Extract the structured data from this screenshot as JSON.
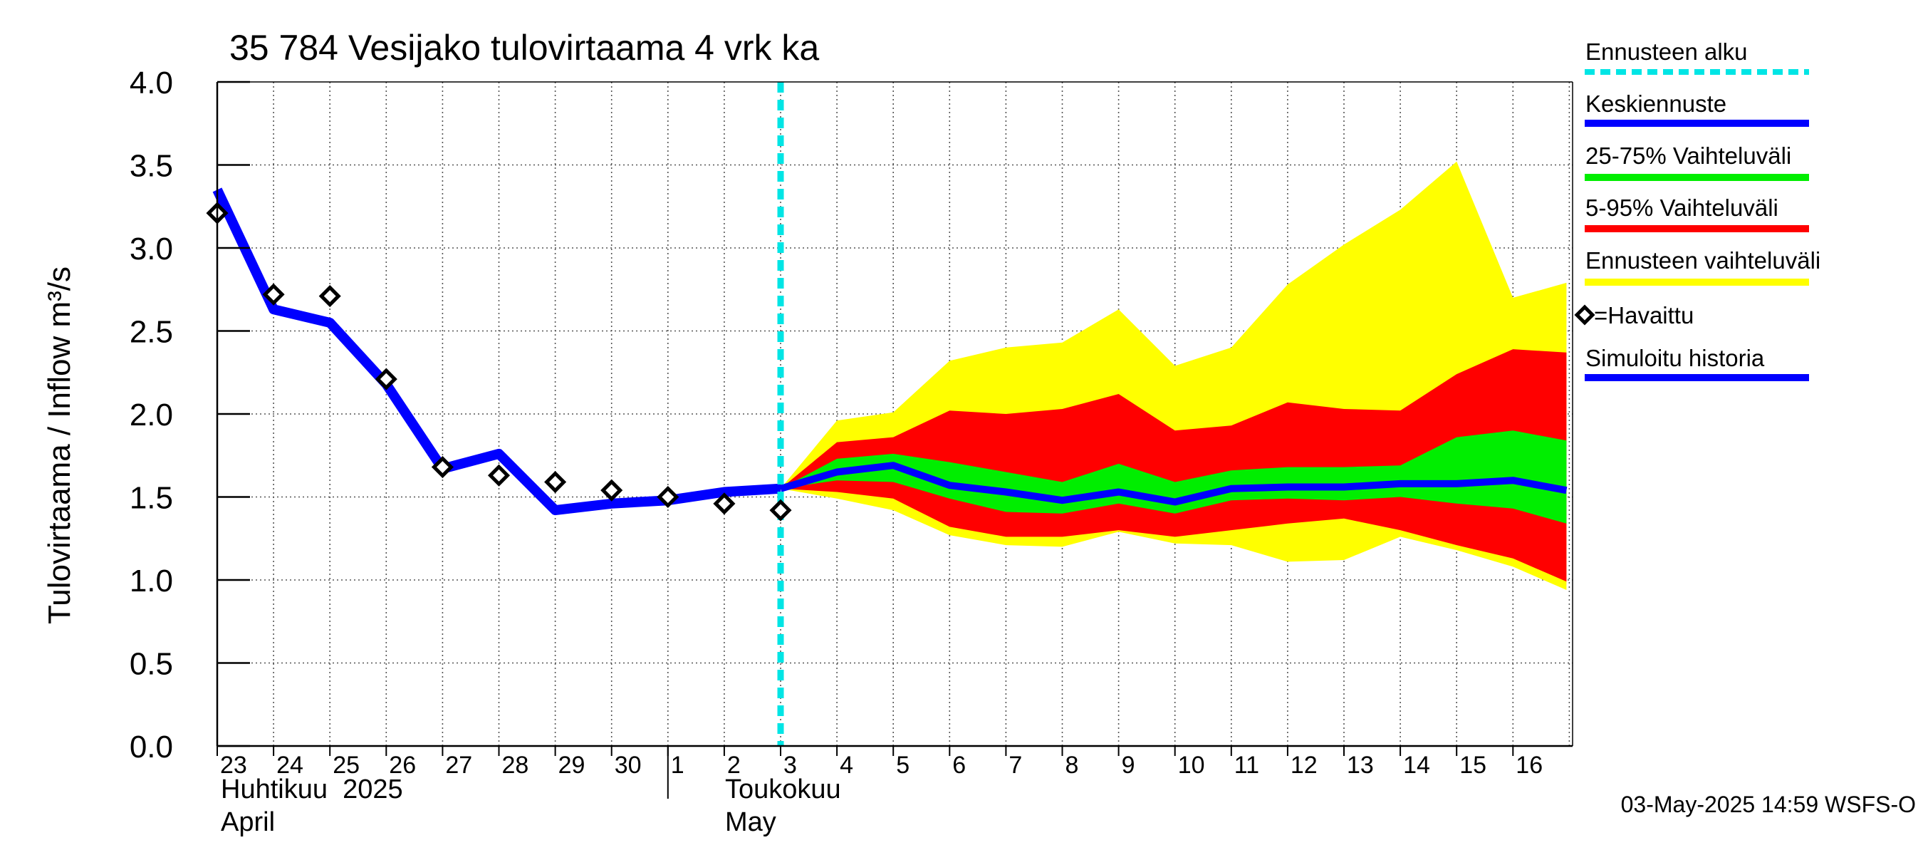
{
  "chart_data": {
    "type": "area",
    "title": "35 784 Vesijako tulovirtaama 4 vrk ka",
    "ylabel": "Tulovirtaama / Inflow    m³/s",
    "ylim": [
      0.0,
      4.0
    ],
    "yticks": [
      "0.0",
      "0.5",
      "1.0",
      "1.5",
      "2.0",
      "2.5",
      "3.0",
      "3.5",
      "4.0"
    ],
    "x_days": [
      "23",
      "24",
      "25",
      "26",
      "27",
      "28",
      "29",
      "30",
      "1",
      "2",
      "3",
      "4",
      "5",
      "6",
      "7",
      "8",
      "9",
      "10",
      "11",
      "12",
      "13",
      "14",
      "15",
      "16"
    ],
    "month_labels": [
      {
        "line1": "Huhtikuu  2025",
        "line2": "April"
      },
      {
        "line1": "Toukokuu",
        "line2": "May"
      }
    ],
    "forecast_start_index": 10,
    "forecast_index": [
      10,
      11,
      12,
      13,
      14,
      15,
      16,
      17,
      18,
      19,
      20,
      21,
      22,
      23,
      23.95
    ],
    "ennusteen_vaihteluvali": {
      "upper": [
        1.55,
        1.96,
        2.01,
        2.32,
        2.4,
        2.43,
        2.63,
        2.29,
        2.4,
        2.78,
        3.02,
        3.23,
        3.52,
        2.7,
        2.79
      ],
      "lower": [
        1.55,
        1.49,
        1.42,
        1.27,
        1.21,
        1.2,
        1.29,
        1.22,
        1.21,
        1.11,
        1.12,
        1.26,
        1.18,
        1.08,
        0.94
      ]
    },
    "vaihteluvali_5_95": {
      "upper": [
        1.55,
        1.83,
        1.86,
        2.02,
        2.0,
        2.03,
        2.12,
        1.9,
        1.93,
        2.07,
        2.03,
        2.02,
        2.24,
        2.39,
        2.37
      ],
      "lower": [
        1.55,
        1.53,
        1.49,
        1.32,
        1.26,
        1.26,
        1.3,
        1.26,
        1.3,
        1.34,
        1.37,
        1.3,
        1.21,
        1.13,
        0.99
      ]
    },
    "vaihteluvali_25_75": {
      "upper": [
        1.55,
        1.73,
        1.76,
        1.71,
        1.65,
        1.59,
        1.7,
        1.59,
        1.66,
        1.68,
        1.68,
        1.69,
        1.86,
        1.9,
        1.84
      ],
      "lower": [
        1.55,
        1.6,
        1.59,
        1.49,
        1.41,
        1.4,
        1.46,
        1.4,
        1.48,
        1.49,
        1.48,
        1.5,
        1.46,
        1.43,
        1.34
      ]
    },
    "keskiennuste": [
      1.55,
      1.65,
      1.69,
      1.57,
      1.53,
      1.48,
      1.53,
      1.47,
      1.55,
      1.56,
      1.56,
      1.58,
      1.58,
      1.6,
      1.54
    ],
    "simuloitu_historia": {
      "x": [
        0,
        1,
        2,
        3,
        4,
        5,
        6,
        7,
        8,
        9,
        10
      ],
      "y": [
        3.35,
        2.63,
        2.55,
        2.18,
        1.67,
        1.76,
        1.42,
        1.46,
        1.48,
        1.53,
        1.55
      ]
    },
    "havaittu": {
      "x": [
        0,
        1,
        2,
        3,
        4,
        5,
        6,
        7,
        8,
        9,
        10
      ],
      "y": [
        3.21,
        2.72,
        2.71,
        2.21,
        1.68,
        1.63,
        1.59,
        1.54,
        1.5,
        1.46,
        1.42
      ]
    },
    "legend": [
      {
        "label": "Ennusteen alku",
        "color": "#00e5e5",
        "style": "dashed"
      },
      {
        "label": "Keskiennuste",
        "color": "#0000ff",
        "style": "line"
      },
      {
        "label": "25-75% Vaihteluväli",
        "color": "#00ee00",
        "style": "line"
      },
      {
        "label": "5-95% Vaihteluväli",
        "color": "#ff0000",
        "style": "line"
      },
      {
        "label": "Ennusteen vaihteluväli",
        "color": "#ffff00",
        "style": "line"
      },
      {
        "label": "=Havaittu",
        "color": "#000000",
        "style": "marker"
      },
      {
        "label": "Simuloitu historia",
        "color": "#0000ff",
        "style": "line"
      }
    ],
    "timestamp": "03-May-2025 14:59 WSFS-O"
  }
}
